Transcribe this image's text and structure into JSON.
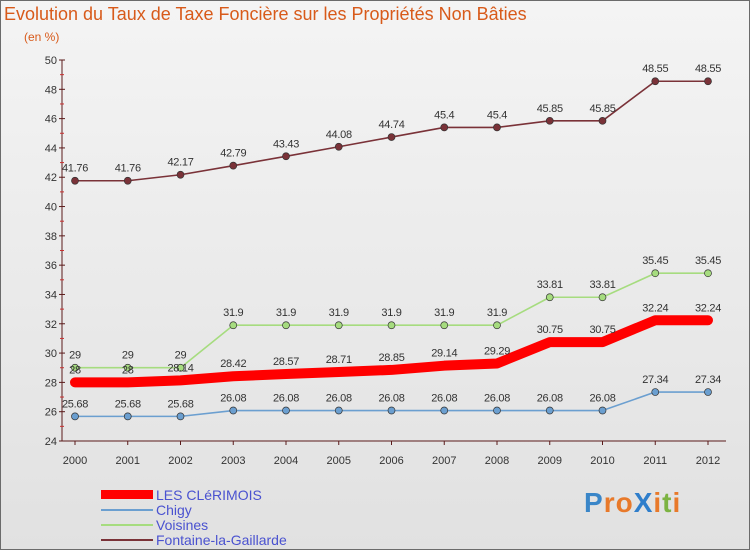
{
  "title": "Evolution du Taux de Taxe Foncière sur les Propriétés Non Bâties",
  "unit": "(en %)",
  "logo": {
    "text": "ProXiti",
    "letters": [
      {
        "ch": "P",
        "color": "#3a86c8"
      },
      {
        "ch": "r",
        "color": "#e8792a"
      },
      {
        "ch": "o",
        "color": "#e8792a"
      },
      {
        "ch": "X",
        "color": "#2f7ecb"
      },
      {
        "ch": "i",
        "color": "#e8792a"
      },
      {
        "ch": "t",
        "color": "#7cb342"
      },
      {
        "ch": "i",
        "color": "#e8792a"
      }
    ]
  },
  "chart_data": {
    "type": "line",
    "title": "Evolution du Taux de Taxe Foncière sur les Propriétés Non Bâties",
    "ylabel": "(en %)",
    "xlabel": "",
    "ylim": [
      24,
      50
    ],
    "yticks": [
      24,
      26,
      28,
      30,
      32,
      34,
      36,
      38,
      40,
      42,
      44,
      46,
      48,
      50
    ],
    "grid": false,
    "x": [
      "2000",
      "2001",
      "2002",
      "2003",
      "2004",
      "2005",
      "2006",
      "2007",
      "2008",
      "2009",
      "2010",
      "2011",
      "2012"
    ],
    "series": [
      {
        "name": "LES CLéRIMOIS",
        "color": "#ff0000",
        "line_style": "thick",
        "values": [
          28,
          28,
          28.14,
          28.42,
          28.57,
          28.71,
          28.85,
          29.14,
          29.29,
          30.75,
          30.75,
          32.24,
          32.24
        ],
        "labels": [
          "28",
          "28",
          "28.14",
          "28.42",
          "28.57",
          "28.71",
          "28.85",
          "29.14",
          "29.29",
          "30.75",
          "30.75",
          "32.24",
          "32.24"
        ]
      },
      {
        "name": "Chigy",
        "color": "#6b9fd0",
        "line_style": "thin",
        "values": [
          25.68,
          25.68,
          25.68,
          26.08,
          26.08,
          26.08,
          26.08,
          26.08,
          26.08,
          26.08,
          26.08,
          27.34,
          27.34
        ],
        "labels": [
          "25.68",
          "25.68",
          "25.68",
          "26.08",
          "26.08",
          "26.08",
          "26.08",
          "26.08",
          "26.08",
          "26.08",
          "26.08",
          "27.34",
          "27.34"
        ]
      },
      {
        "name": "Voisines",
        "color": "#a6dc7f",
        "line_style": "thin",
        "values": [
          29,
          29,
          29,
          31.9,
          31.9,
          31.9,
          31.9,
          31.9,
          31.9,
          33.81,
          33.81,
          35.45,
          35.45
        ],
        "labels": [
          "29",
          "29",
          "29",
          "31.9",
          "31.9",
          "31.9",
          "31.9",
          "31.9",
          "31.9",
          "33.81",
          "33.81",
          "35.45",
          "35.45"
        ]
      },
      {
        "name": "Fontaine-la-Gaillarde",
        "color": "#7a3238",
        "line_style": "thin",
        "values": [
          41.76,
          41.76,
          42.17,
          42.79,
          43.43,
          44.08,
          44.74,
          45.4,
          45.4,
          45.85,
          45.85,
          48.55,
          48.55
        ],
        "labels": [
          "41.76",
          "41.76",
          "42.17",
          "42.79",
          "43.43",
          "44.08",
          "44.74",
          "45.4",
          "45.4",
          "45.85",
          "45.85",
          "48.55",
          "48.55"
        ]
      }
    ],
    "legend": "bottom-left"
  }
}
